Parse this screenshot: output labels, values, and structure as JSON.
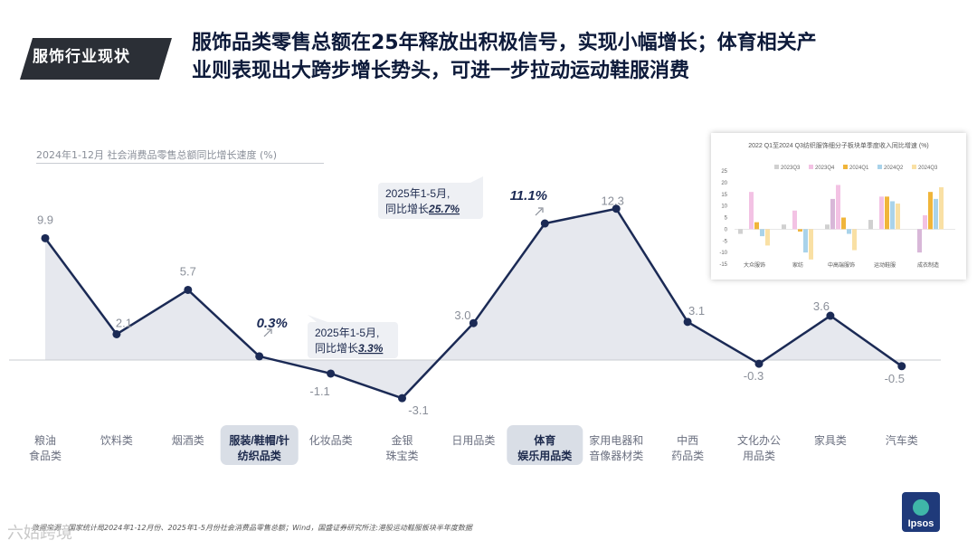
{
  "section_tag": "服饰行业现状",
  "headline_line1": "服饰品类零售总额在25年释放出积极信号，实现小幅增长；体育相关产",
  "headline_line2": "业则表现出大跨步增长势头，可进一步拉动运动鞋服消费",
  "colors": {
    "line": "#1b2a55",
    "area": "#e6e8ee",
    "highlight_bg": "#d9dee6",
    "tag_bg": "#2b2f36"
  },
  "chart_data": [
    {
      "type": "area",
      "title": "2024年1-12月 社会消费品零售总额同比增长速度 (%)",
      "categories": [
        "粮油\n食品类",
        "饮料类",
        "烟酒类",
        "服装/鞋帽/针\n纺织品类",
        "化妆品类",
        "金银\n珠宝类",
        "日用品类",
        "体育\n娱乐用品类",
        "家用电器和\n音像器材类",
        "中西\n药品类",
        "文化办公\n用品类",
        "家具类",
        "汽车类"
      ],
      "values": [
        9.9,
        2.1,
        5.7,
        0.3,
        -1.1,
        -3.1,
        3.0,
        11.1,
        12.3,
        3.1,
        -0.3,
        3.6,
        -0.5
      ],
      "value_labels": [
        "9.9",
        "2.1",
        "5.7",
        "0.3%",
        "-1.1",
        "-3.1",
        "3.0",
        "11.1%",
        "12.3",
        "3.1",
        "-0.3",
        "3.6",
        "-0.5"
      ],
      "highlighted": [
        3,
        7
      ],
      "ylim": [
        -4,
        14
      ],
      "annotations": [
        {
          "line1": "2025年1-5月,",
          "line2_prefix": "同比增长",
          "value": "3.3%",
          "category": "服装/鞋帽/针\n纺织品类"
        },
        {
          "line1": "2025年1-5月,",
          "line2_prefix": "同比增长",
          "value": "25.7%",
          "category": "体育\n娱乐用品类"
        }
      ]
    },
    {
      "type": "bar",
      "title": "2022 Q1至2024 Q3纺织服饰细分子板块单季度收入同比增速 (%)",
      "categories": [
        "大众服饰",
        "家纺",
        "中高端服饰",
        "运动鞋服",
        "成衣制造"
      ],
      "series": [
        {
          "name": "2023Q3",
          "color": "#d0d0d0",
          "values": [
            -2,
            2,
            2,
            4,
            0
          ]
        },
        {
          "name": "2023Q4",
          "color": "#f3c2e4",
          "values": [
            16,
            8,
            19,
            14,
            6
          ]
        },
        {
          "name": "2024Q1",
          "color": "#f0b53a",
          "values": [
            3,
            -1,
            5,
            14,
            16
          ]
        },
        {
          "name": "2024Q2",
          "color": "#a9d3ea",
          "values": [
            -3,
            -10,
            -2,
            12,
            13
          ]
        },
        {
          "name": "2024Q3",
          "color": "#f9e0a4",
          "values": [
            -7,
            -13,
            -9,
            11,
            18
          ]
        }
      ],
      "extra_series": {
        "name": "",
        "color": "#d8b7d8",
        "values": [
          0,
          0,
          13,
          0,
          -10
        ]
      },
      "ylim": [
        -15,
        25
      ],
      "yticks": [
        25,
        20,
        15,
        10,
        5,
        0,
        -5,
        -10,
        -15
      ]
    }
  ],
  "footer": "数据来源：国家统计局2024年1-12月份、2025年1-5月份社会消费品零售总额；Wind，国盛证券研究所注:港股运动鞋服板块半年度数据",
  "watermark": "六姑跨境",
  "logo_text": "Ipsos"
}
